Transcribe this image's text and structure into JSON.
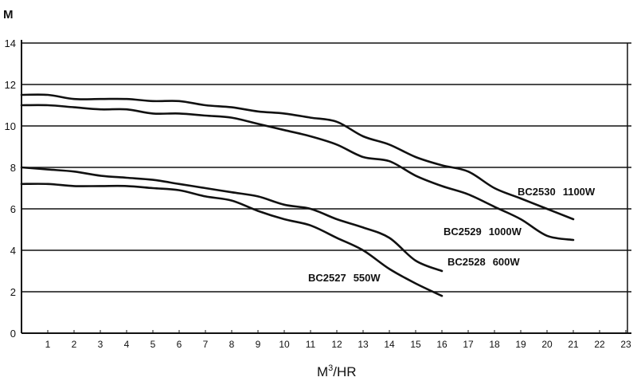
{
  "chart_data": {
    "type": "line",
    "title": "",
    "ylabel": "M",
    "xlabel": "M³/HR",
    "xlabel_base": "M",
    "xlabel_sup": "3",
    "xlabel_rest": "/HR",
    "xlim": [
      0,
      23
    ],
    "ylim": [
      0,
      14
    ],
    "x_ticks": [
      1,
      2,
      3,
      4,
      5,
      6,
      7,
      8,
      9,
      10,
      11,
      12,
      13,
      14,
      15,
      16,
      17,
      18,
      19,
      20,
      21,
      22,
      23
    ],
    "y_ticks": [
      0,
      2,
      4,
      6,
      8,
      10,
      12,
      14
    ],
    "grid": "horizontal",
    "line_color": "#111111",
    "series": [
      {
        "name": "BC2530",
        "power": "1100W",
        "x": [
          0,
          1,
          2,
          3,
          4,
          5,
          6,
          7,
          8,
          9,
          10,
          11,
          12,
          13,
          14,
          15,
          16,
          17,
          18,
          19,
          20,
          21
        ],
        "y": [
          11.5,
          11.5,
          11.3,
          11.3,
          11.3,
          11.2,
          11.2,
          11.0,
          10.9,
          10.7,
          10.6,
          10.4,
          10.2,
          9.5,
          9.1,
          8.5,
          8.1,
          7.8,
          7.0,
          6.5,
          6.0,
          5.5
        ]
      },
      {
        "name": "BC2529",
        "power": "1000W",
        "x": [
          0,
          1,
          2,
          3,
          4,
          5,
          6,
          7,
          8,
          9,
          10,
          11,
          12,
          13,
          14,
          15,
          16,
          17,
          18,
          19,
          20,
          21
        ],
        "y": [
          11.0,
          11.0,
          10.9,
          10.8,
          10.8,
          10.6,
          10.6,
          10.5,
          10.4,
          10.1,
          9.8,
          9.5,
          9.1,
          8.5,
          8.3,
          7.6,
          7.1,
          6.7,
          6.1,
          5.5,
          4.7,
          4.5
        ]
      },
      {
        "name": "BC2528",
        "power": "600W",
        "x": [
          0,
          1,
          2,
          3,
          4,
          5,
          6,
          7,
          8,
          9,
          10,
          11,
          12,
          13,
          14,
          15,
          16
        ],
        "y": [
          8.0,
          7.9,
          7.8,
          7.6,
          7.5,
          7.4,
          7.2,
          7.0,
          6.8,
          6.6,
          6.2,
          6.0,
          5.5,
          5.1,
          4.6,
          3.5,
          3.0
        ]
      },
      {
        "name": "BC2527",
        "power": "550W",
        "x": [
          0,
          1,
          2,
          3,
          4,
          5,
          6,
          7,
          8,
          9,
          10,
          11,
          12,
          13,
          14,
          15,
          16
        ],
        "y": [
          7.2,
          7.2,
          7.1,
          7.1,
          7.1,
          7.0,
          6.9,
          6.6,
          6.4,
          5.9,
          5.5,
          5.2,
          4.6,
          4.0,
          3.1,
          2.4,
          1.8
        ]
      }
    ]
  }
}
